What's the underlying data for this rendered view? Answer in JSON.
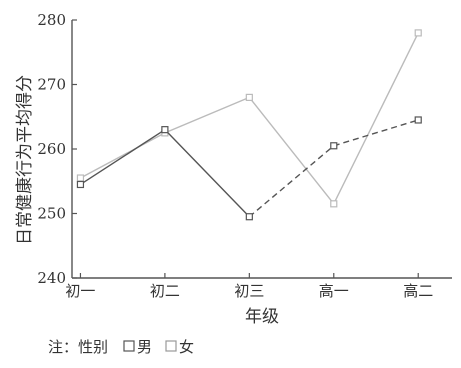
{
  "chart_data": {
    "type": "line",
    "xlabel": "年级",
    "ylabel": "日常健康行为平均得分",
    "categories": [
      "初一",
      "初二",
      "初三",
      "高一",
      "高二"
    ],
    "ylim": [
      240,
      280
    ],
    "yticks": [
      "240",
      "250",
      "260",
      "270",
      "280"
    ],
    "series": [
      {
        "name": "男",
        "values": [
          254.5,
          263,
          249.5,
          260.5,
          264.5
        ],
        "color": "#555555",
        "dash": "dashed-after-first-segment",
        "marker": "square"
      },
      {
        "name": "女",
        "values": [
          255.5,
          262.5,
          268,
          251.5,
          278
        ],
        "color": "#bbbbbb",
        "dash": "solid",
        "marker": "square"
      }
    ],
    "legend": {
      "title": "注：性别",
      "position": "bottom-left"
    },
    "grid": false
  }
}
